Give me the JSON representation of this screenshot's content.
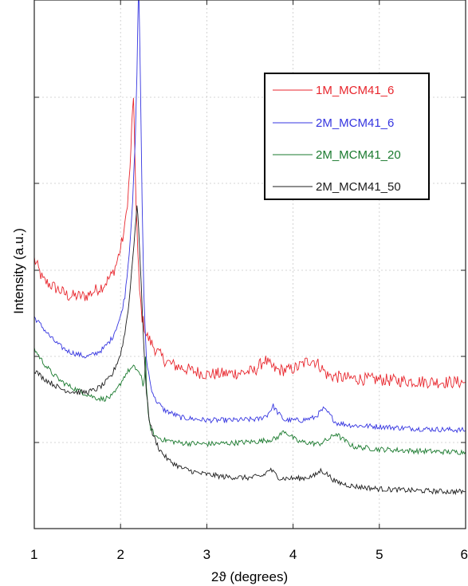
{
  "chart_data": {
    "type": "line",
    "xlabel": "2ϑ (degrees)",
    "ylabel": "Intensity (a.u.)",
    "xlim": [
      1,
      6
    ],
    "ylim": [
      0,
      1
    ],
    "x_ticks": [
      "1",
      "2",
      "3",
      "4",
      "5",
      "6"
    ],
    "grid": true,
    "legend_position": "top-right",
    "series": [
      {
        "name": "1M_MCM41_6",
        "color": "#e8262d",
        "points": [
          [
            1.0,
            0.51
          ],
          [
            1.1,
            0.47
          ],
          [
            1.2,
            0.46
          ],
          [
            1.3,
            0.45
          ],
          [
            1.4,
            0.44
          ],
          [
            1.5,
            0.44
          ],
          [
            1.6,
            0.44
          ],
          [
            1.7,
            0.45
          ],
          [
            1.8,
            0.46
          ],
          [
            1.9,
            0.48
          ],
          [
            1.95,
            0.5
          ],
          [
            2.0,
            0.53
          ],
          [
            2.05,
            0.57
          ],
          [
            2.08,
            0.62
          ],
          [
            2.11,
            0.68
          ],
          [
            2.13,
            0.76
          ],
          [
            2.15,
            0.82
          ],
          [
            2.16,
            0.74
          ],
          [
            2.18,
            0.62
          ],
          [
            2.2,
            0.52
          ],
          [
            2.22,
            0.45
          ],
          [
            2.25,
            0.4
          ],
          [
            2.3,
            0.366
          ],
          [
            2.4,
            0.34
          ],
          [
            2.5,
            0.32
          ],
          [
            2.6,
            0.31
          ],
          [
            2.8,
            0.3
          ],
          [
            3.0,
            0.292
          ],
          [
            3.2,
            0.293
          ],
          [
            3.4,
            0.295
          ],
          [
            3.55,
            0.298
          ],
          [
            3.62,
            0.31
          ],
          [
            3.67,
            0.32
          ],
          [
            3.72,
            0.31
          ],
          [
            3.8,
            0.3
          ],
          [
            3.95,
            0.3
          ],
          [
            4.05,
            0.305
          ],
          [
            4.15,
            0.315
          ],
          [
            4.22,
            0.32
          ],
          [
            4.3,
            0.31
          ],
          [
            4.4,
            0.29
          ],
          [
            4.6,
            0.285
          ],
          [
            4.8,
            0.283
          ],
          [
            5.0,
            0.282
          ],
          [
            5.2,
            0.28
          ],
          [
            5.5,
            0.278
          ],
          [
            5.8,
            0.277
          ],
          [
            6.0,
            0.277
          ]
        ]
      },
      {
        "name": "2M_MCM41_6",
        "color": "#3535e0",
        "points": [
          [
            1.0,
            0.4
          ],
          [
            1.1,
            0.38
          ],
          [
            1.2,
            0.36
          ],
          [
            1.3,
            0.345
          ],
          [
            1.4,
            0.335
          ],
          [
            1.5,
            0.33
          ],
          [
            1.6,
            0.325
          ],
          [
            1.7,
            0.33
          ],
          [
            1.8,
            0.34
          ],
          [
            1.9,
            0.36
          ],
          [
            2.0,
            0.4
          ],
          [
            2.05,
            0.44
          ],
          [
            2.1,
            0.52
          ],
          [
            2.14,
            0.62
          ],
          [
            2.17,
            0.73
          ],
          [
            2.19,
            0.86
          ],
          [
            2.21,
            1.04
          ],
          [
            2.23,
            0.85
          ],
          [
            2.25,
            0.62
          ],
          [
            2.27,
            0.44
          ],
          [
            2.3,
            0.32
          ],
          [
            2.35,
            0.27
          ],
          [
            2.4,
            0.245
          ],
          [
            2.5,
            0.225
          ],
          [
            2.7,
            0.21
          ],
          [
            3.0,
            0.205
          ],
          [
            3.3,
            0.205
          ],
          [
            3.6,
            0.207
          ],
          [
            3.7,
            0.215
          ],
          [
            3.77,
            0.232
          ],
          [
            3.82,
            0.22
          ],
          [
            3.9,
            0.205
          ],
          [
            4.1,
            0.205
          ],
          [
            4.25,
            0.21
          ],
          [
            4.35,
            0.226
          ],
          [
            4.4,
            0.22
          ],
          [
            4.5,
            0.2
          ],
          [
            4.7,
            0.195
          ],
          [
            5.0,
            0.193
          ],
          [
            5.3,
            0.19
          ],
          [
            5.6,
            0.188
          ],
          [
            5.85,
            0.187
          ],
          [
            6.0,
            0.186
          ]
        ]
      },
      {
        "name": "2M_MCM41_20",
        "color": "#1a7a2e",
        "points": [
          [
            1.0,
            0.34
          ],
          [
            1.1,
            0.315
          ],
          [
            1.2,
            0.295
          ],
          [
            1.3,
            0.28
          ],
          [
            1.4,
            0.27
          ],
          [
            1.5,
            0.262
          ],
          [
            1.6,
            0.255
          ],
          [
            1.7,
            0.248
          ],
          [
            1.8,
            0.245
          ],
          [
            1.9,
            0.25
          ],
          [
            1.95,
            0.26
          ],
          [
            2.0,
            0.275
          ],
          [
            2.05,
            0.29
          ],
          [
            2.1,
            0.3
          ],
          [
            2.15,
            0.305
          ],
          [
            2.2,
            0.3
          ],
          [
            2.24,
            0.285
          ],
          [
            2.26,
            0.27
          ],
          [
            2.28,
            0.29
          ],
          [
            2.29,
            0.33
          ],
          [
            2.3,
            0.27
          ],
          [
            2.32,
            0.215
          ],
          [
            2.35,
            0.19
          ],
          [
            2.4,
            0.175
          ],
          [
            2.5,
            0.168
          ],
          [
            2.7,
            0.162
          ],
          [
            3.0,
            0.16
          ],
          [
            3.3,
            0.162
          ],
          [
            3.6,
            0.165
          ],
          [
            3.8,
            0.17
          ],
          [
            3.9,
            0.185
          ],
          [
            3.95,
            0.178
          ],
          [
            4.05,
            0.165
          ],
          [
            4.3,
            0.16
          ],
          [
            4.42,
            0.17
          ],
          [
            4.5,
            0.18
          ],
          [
            4.55,
            0.172
          ],
          [
            4.7,
            0.155
          ],
          [
            5.0,
            0.15
          ],
          [
            5.4,
            0.147
          ],
          [
            5.8,
            0.145
          ],
          [
            6.0,
            0.145
          ]
        ]
      },
      {
        "name": "2M_MCM41_50",
        "color": "#1c1c1c",
        "points": [
          [
            1.0,
            0.3
          ],
          [
            1.1,
            0.285
          ],
          [
            1.2,
            0.275
          ],
          [
            1.3,
            0.265
          ],
          [
            1.4,
            0.26
          ],
          [
            1.5,
            0.258
          ],
          [
            1.6,
            0.258
          ],
          [
            1.7,
            0.262
          ],
          [
            1.8,
            0.272
          ],
          [
            1.9,
            0.29
          ],
          [
            2.0,
            0.33
          ],
          [
            2.05,
            0.37
          ],
          [
            2.1,
            0.43
          ],
          [
            2.14,
            0.51
          ],
          [
            2.17,
            0.57
          ],
          [
            2.19,
            0.61
          ],
          [
            2.21,
            0.57
          ],
          [
            2.24,
            0.46
          ],
          [
            2.27,
            0.34
          ],
          [
            2.3,
            0.26
          ],
          [
            2.33,
            0.21
          ],
          [
            2.37,
            0.18
          ],
          [
            2.45,
            0.15
          ],
          [
            2.55,
            0.13
          ],
          [
            2.7,
            0.115
          ],
          [
            2.9,
            0.105
          ],
          [
            3.2,
            0.098
          ],
          [
            3.5,
            0.096
          ],
          [
            3.65,
            0.1
          ],
          [
            3.73,
            0.112
          ],
          [
            3.78,
            0.105
          ],
          [
            3.85,
            0.095
          ],
          [
            4.1,
            0.095
          ],
          [
            4.25,
            0.1
          ],
          [
            4.32,
            0.11
          ],
          [
            4.38,
            0.105
          ],
          [
            4.5,
            0.088
          ],
          [
            4.7,
            0.08
          ],
          [
            5.0,
            0.075
          ],
          [
            5.4,
            0.072
          ],
          [
            5.8,
            0.07
          ],
          [
            6.0,
            0.07
          ]
        ]
      }
    ]
  }
}
